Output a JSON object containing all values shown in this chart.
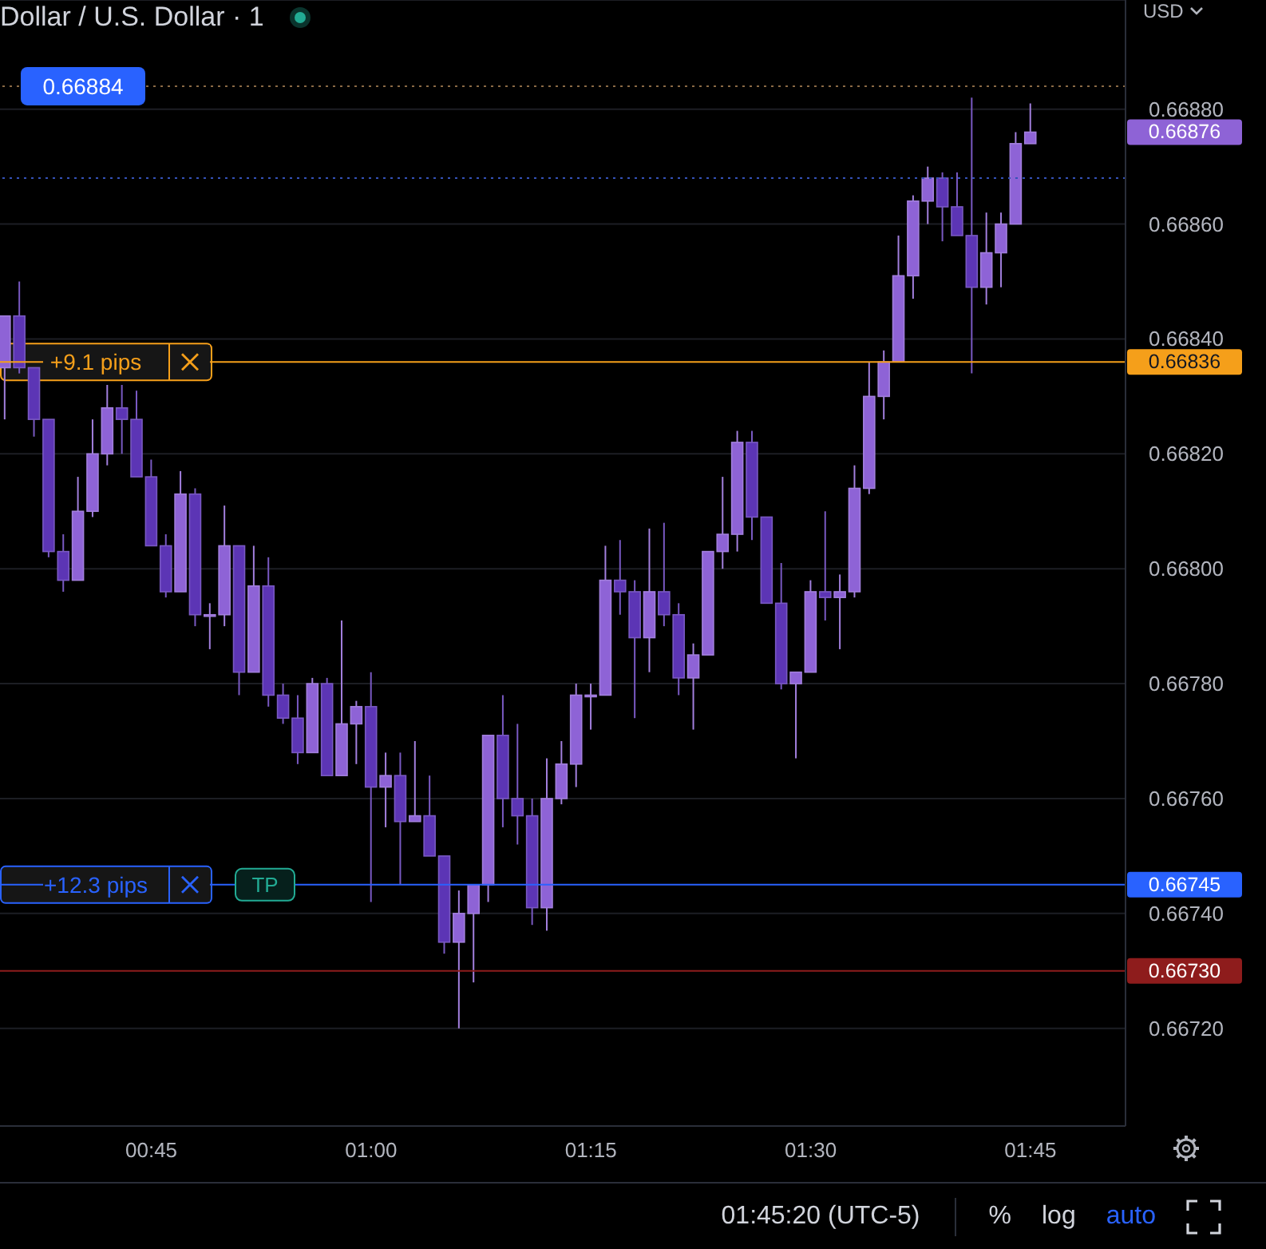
{
  "chart_data": {
    "type": "candlestick",
    "title": "Dollar / U.S. Dollar · 1",
    "categories": [
      null,
      null,
      null,
      null,
      null,
      null,
      null,
      null,
      null,
      null,
      "00:45",
      null,
      null,
      null,
      null,
      null,
      null,
      null,
      null,
      null,
      null,
      null,
      null,
      null,
      null,
      "01:00",
      null,
      null,
      null,
      null,
      null,
      null,
      null,
      null,
      null,
      null,
      null,
      null,
      null,
      null,
      "01:15",
      null,
      null,
      null,
      null,
      null,
      null,
      null,
      null,
      null,
      null,
      null,
      null,
      null,
      null,
      "01:30",
      null,
      null,
      null,
      null,
      null,
      null,
      null,
      null,
      null,
      null,
      null,
      null,
      null,
      null,
      "01:45"
    ],
    "ohlc": [
      [
        0.66835,
        0.66844,
        0.66826,
        0.66844
      ],
      [
        0.66844,
        0.6685,
        0.66834,
        0.66835
      ],
      [
        0.66835,
        0.66835,
        0.66823,
        0.66826
      ],
      [
        0.66826,
        0.66826,
        0.66802,
        0.66803
      ],
      [
        0.66803,
        0.66806,
        0.66796,
        0.66798
      ],
      [
        0.66798,
        0.66816,
        0.66798,
        0.6681
      ],
      [
        0.6681,
        0.66826,
        0.66809,
        0.6682
      ],
      [
        0.6682,
        0.66832,
        0.66818,
        0.66828
      ],
      [
        0.66828,
        0.66832,
        0.6682,
        0.66826
      ],
      [
        0.66826,
        0.66831,
        0.66816,
        0.66816
      ],
      [
        0.66816,
        0.66819,
        0.66804,
        0.66804
      ],
      [
        0.66804,
        0.66806,
        0.66795,
        0.66796
      ],
      [
        0.66796,
        0.66817,
        0.66796,
        0.66813
      ],
      [
        0.66813,
        0.66814,
        0.6679,
        0.66792
      ],
      [
        0.66792,
        0.66794,
        0.66786,
        0.66792
      ],
      [
        0.66792,
        0.66811,
        0.6679,
        0.66804
      ],
      [
        0.66804,
        0.66804,
        0.66778,
        0.66782
      ],
      [
        0.66782,
        0.66804,
        0.66782,
        0.66797
      ],
      [
        0.66797,
        0.66802,
        0.66776,
        0.66778
      ],
      [
        0.66778,
        0.6678,
        0.66773,
        0.66774
      ],
      [
        0.66774,
        0.66778,
        0.66766,
        0.66768
      ],
      [
        0.66768,
        0.66781,
        0.66768,
        0.6678
      ],
      [
        0.6678,
        0.66781,
        0.66764,
        0.66764
      ],
      [
        0.66764,
        0.66791,
        0.66764,
        0.66773
      ],
      [
        0.66773,
        0.66777,
        0.66766,
        0.66776
      ],
      [
        0.66776,
        0.66782,
        0.66742,
        0.66762
      ],
      [
        0.66762,
        0.66768,
        0.66755,
        0.66764
      ],
      [
        0.66764,
        0.66768,
        0.66745,
        0.66756
      ],
      [
        0.66756,
        0.6677,
        0.66756,
        0.66757
      ],
      [
        0.66757,
        0.66764,
        0.6675,
        0.6675
      ],
      [
        0.6675,
        0.6675,
        0.66733,
        0.66735
      ],
      [
        0.66735,
        0.66744,
        0.6672,
        0.6674
      ],
      [
        0.6674,
        0.66745,
        0.66728,
        0.66745
      ],
      [
        0.66745,
        0.66771,
        0.66742,
        0.66771
      ],
      [
        0.66771,
        0.66778,
        0.66755,
        0.6676
      ],
      [
        0.6676,
        0.66773,
        0.66752,
        0.66757
      ],
      [
        0.66757,
        0.6676,
        0.66738,
        0.66741
      ],
      [
        0.66741,
        0.66767,
        0.66737,
        0.6676
      ],
      [
        0.6676,
        0.6677,
        0.66759,
        0.66766
      ],
      [
        0.66766,
        0.6678,
        0.66762,
        0.66778
      ],
      [
        0.66778,
        0.6678,
        0.66772,
        0.66778
      ],
      [
        0.66778,
        0.66804,
        0.66778,
        0.66798
      ],
      [
        0.66798,
        0.66805,
        0.66792,
        0.66796
      ],
      [
        0.66796,
        0.66798,
        0.66774,
        0.66788
      ],
      [
        0.66788,
        0.66807,
        0.66782,
        0.66796
      ],
      [
        0.66796,
        0.66808,
        0.6679,
        0.66792
      ],
      [
        0.66792,
        0.66794,
        0.66778,
        0.66781
      ],
      [
        0.66781,
        0.66787,
        0.66772,
        0.66785
      ],
      [
        0.66785,
        0.66803,
        0.66785,
        0.66803
      ],
      [
        0.66803,
        0.66816,
        0.668,
        0.66806
      ],
      [
        0.66806,
        0.66824,
        0.66803,
        0.66822
      ],
      [
        0.66822,
        0.66824,
        0.66805,
        0.66809
      ],
      [
        0.66809,
        0.66809,
        0.66794,
        0.66794
      ],
      [
        0.66794,
        0.66801,
        0.66779,
        0.6678
      ],
      [
        0.6678,
        0.66782,
        0.66767,
        0.66782
      ],
      [
        0.66782,
        0.66798,
        0.66782,
        0.66796
      ],
      [
        0.66796,
        0.6681,
        0.66791,
        0.66795
      ],
      [
        0.66795,
        0.66799,
        0.66786,
        0.66796
      ],
      [
        0.66796,
        0.66818,
        0.66795,
        0.66814
      ],
      [
        0.66814,
        0.66836,
        0.66813,
        0.6683
      ],
      [
        0.6683,
        0.66838,
        0.66826,
        0.66836
      ],
      [
        0.66836,
        0.66858,
        0.66836,
        0.66851
      ],
      [
        0.66851,
        0.66865,
        0.66847,
        0.66864
      ],
      [
        0.66864,
        0.6687,
        0.6686,
        0.66868
      ],
      [
        0.66868,
        0.66869,
        0.66857,
        0.66863
      ],
      [
        0.66863,
        0.66869,
        0.66858,
        0.66858
      ],
      [
        0.66858,
        0.66882,
        0.66834,
        0.66849
      ],
      [
        0.66849,
        0.66862,
        0.66846,
        0.66855
      ],
      [
        0.66855,
        0.66862,
        0.66849,
        0.6686
      ],
      [
        0.6686,
        0.66876,
        0.6686,
        0.66874
      ],
      [
        0.66874,
        0.66881,
        0.66874,
        0.66876
      ]
    ],
    "colors": [
      "#8e63d6",
      "#5c35b5",
      "#5c35b5",
      "#5c35b5",
      "#5c35b5",
      "#8e63d6",
      "#8e63d6",
      "#8e63d6",
      "#5c35b5",
      "#5c35b5",
      "#5c35b5",
      "#5c35b5",
      "#8e63d6",
      "#5c35b5",
      "#8e63d6",
      "#8e63d6",
      "#5c35b5",
      "#8e63d6",
      "#5c35b5",
      "#5c35b5",
      "#5c35b5",
      "#8e63d6",
      "#5c35b5",
      "#8e63d6",
      "#8e63d6",
      "#5c35b5",
      "#8e63d6",
      "#5c35b5",
      "#8e63d6",
      "#5c35b5",
      "#5c35b5",
      "#8e63d6",
      "#8e63d6",
      "#8e63d6",
      "#5c35b5",
      "#5c35b5",
      "#5c35b5",
      "#8e63d6",
      "#8e63d6",
      "#8e63d6",
      "#8e63d6",
      "#8e63d6",
      "#5c35b5",
      "#5c35b5",
      "#8e63d6",
      "#5c35b5",
      "#5c35b5",
      "#8e63d6",
      "#8e63d6",
      "#8e63d6",
      "#8e63d6",
      "#5c35b5",
      "#5c35b5",
      "#5c35b5",
      "#8e63d6",
      "#8e63d6",
      "#5c35b5",
      "#8e63d6",
      "#8e63d6",
      "#8e63d6",
      "#8e63d6",
      "#8e63d6",
      "#8e63d6",
      "#8e63d6",
      "#5c35b5",
      "#5c35b5",
      "#5c35b5",
      "#8e63d6",
      "#8e63d6",
      "#8e63d6",
      "#8e63d6"
    ],
    "ylim": [
      0.66703,
      0.66899
    ],
    "yticks": [
      {
        "value": 0.6672,
        "label": "0.66720"
      },
      {
        "value": 0.6674,
        "label": "0.66740"
      },
      {
        "value": 0.6676,
        "label": "0.66760"
      },
      {
        "value": 0.6678,
        "label": "0.66780"
      },
      {
        "value": 0.668,
        "label": "0.66800"
      },
      {
        "value": 0.6682,
        "label": "0.66820"
      },
      {
        "value": 0.6684,
        "label": "0.66840"
      },
      {
        "value": 0.6686,
        "label": "0.66860"
      },
      {
        "value": 0.6688,
        "label": "0.66880"
      }
    ],
    "grid": "y",
    "ref_lines": [
      {
        "axis": "y",
        "value": 0.66884,
        "label": "0.66884",
        "color": "#8a6a45",
        "line_style": "dotted"
      },
      {
        "axis": "y",
        "value": 0.66868,
        "label": null,
        "color": "#3552b8",
        "line_style": "dotted"
      },
      {
        "axis": "y",
        "value": 0.66836,
        "label": "0.66836",
        "color": "#f59f1a"
      },
      {
        "axis": "y",
        "value": 0.66745,
        "label": "0.66745",
        "color": "#2962ff"
      },
      {
        "axis": "y",
        "value": 0.6673,
        "label": "0.66730",
        "color": "#8e1c1c"
      }
    ],
    "annotations": [
      "USD",
      "0.66876",
      {
        "text": "+9.1 pips",
        "y": 0.66836
      },
      {
        "text": "+12.3 pips",
        "y": 0.66745
      },
      {
        "text": "TP",
        "y": 0.66745
      },
      "01:45:20 (UTC-5)",
      "%",
      "log",
      "auto"
    ]
  }
}
